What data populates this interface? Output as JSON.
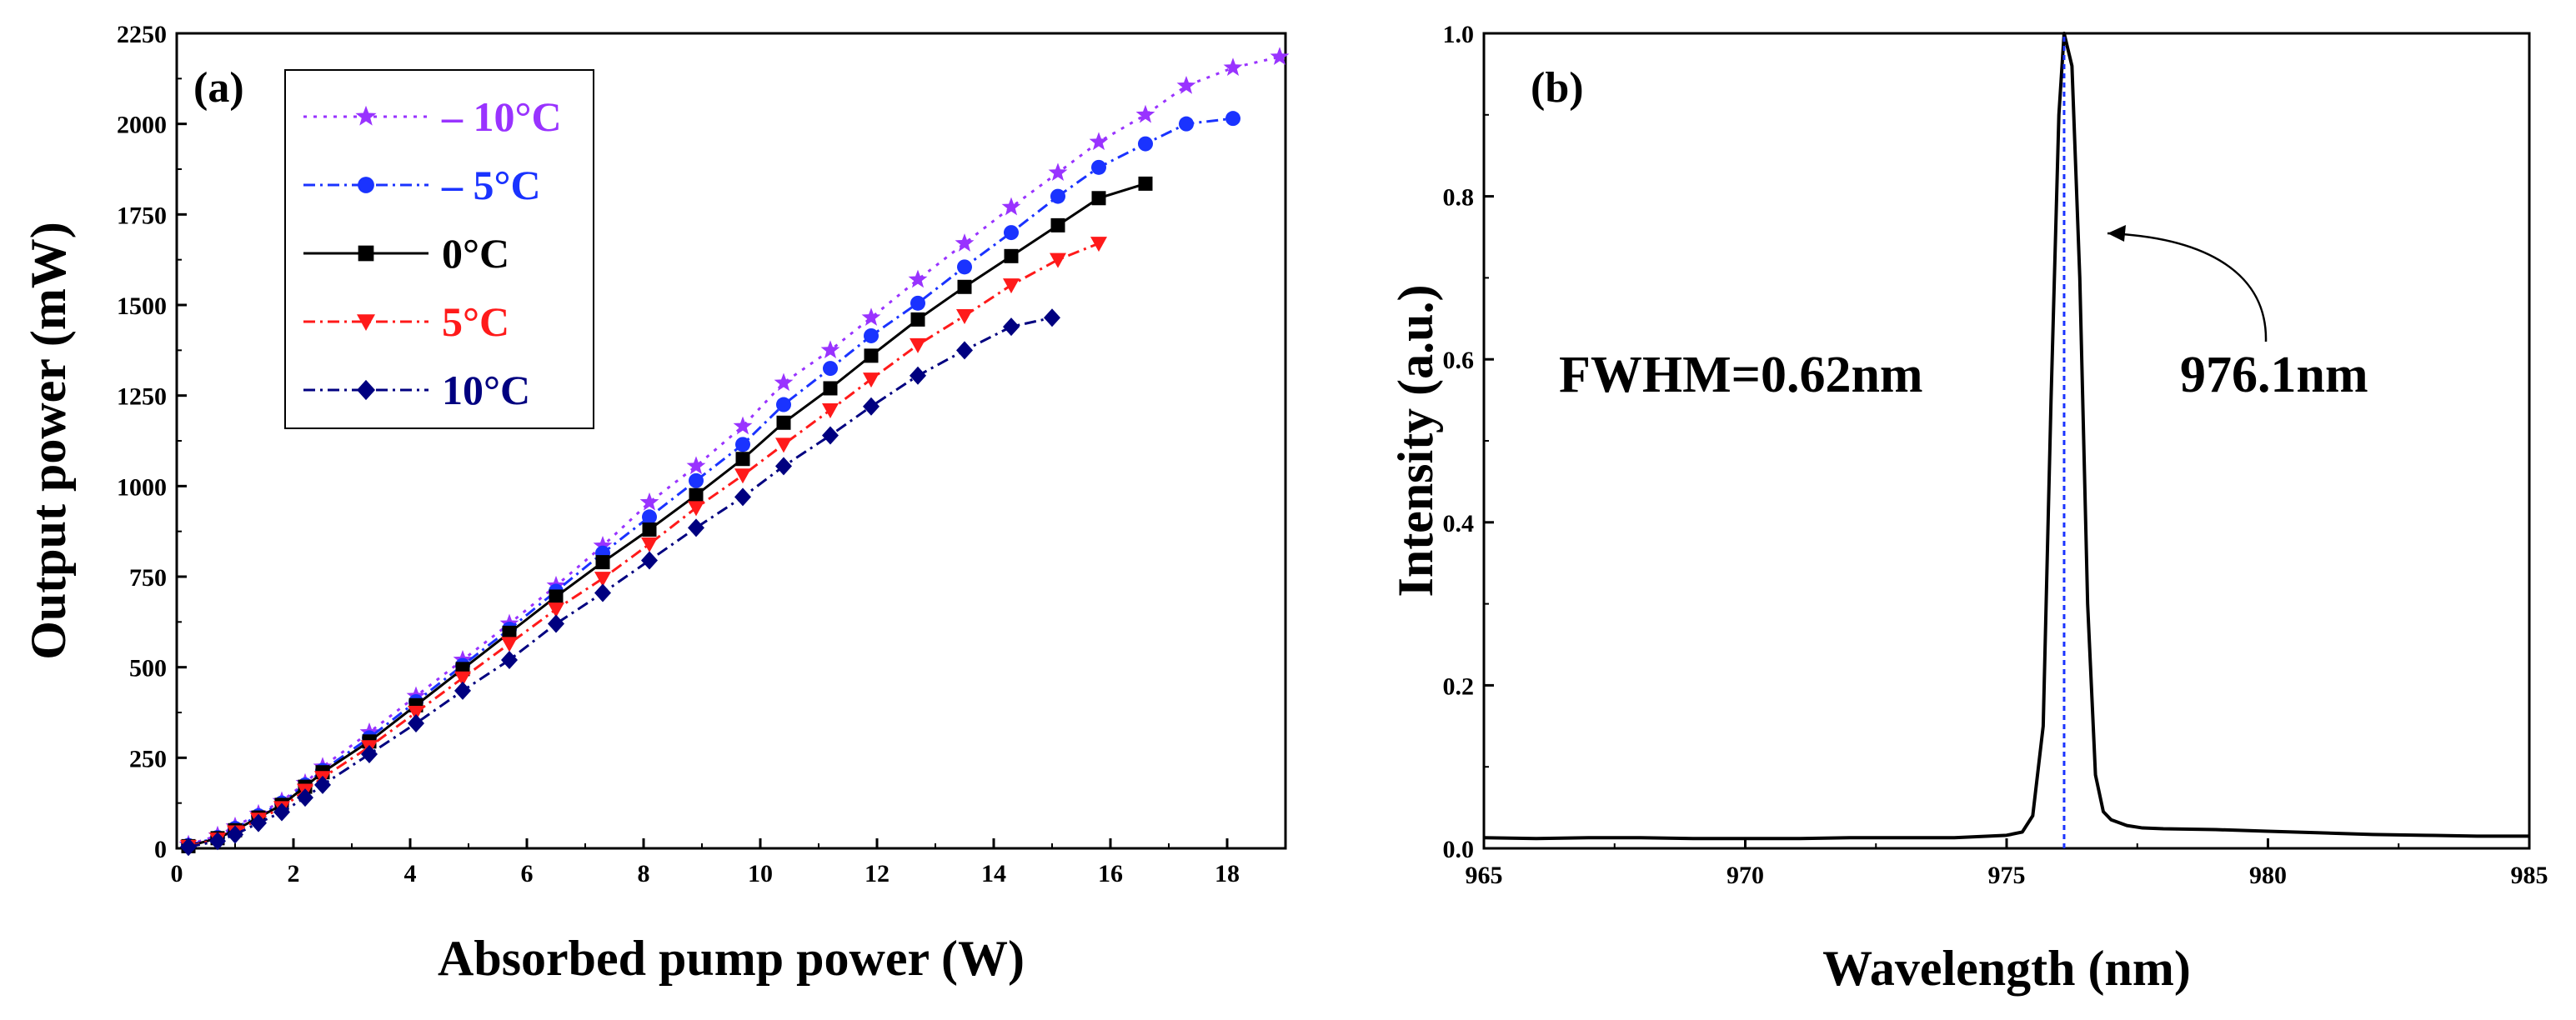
{
  "chart_data": [
    {
      "type": "line",
      "panel_label": "(a)",
      "xlabel": "Absorbed pump power (W)",
      "ylabel": "Output power (mW)",
      "xlim": [
        0,
        19
      ],
      "ylim": [
        0,
        2250
      ],
      "xticks": [
        0,
        2,
        4,
        6,
        8,
        10,
        12,
        14,
        16,
        18
      ],
      "yticks": [
        0,
        250,
        500,
        750,
        1000,
        1250,
        1500,
        1750,
        2000,
        2250
      ],
      "legend_position": "top-left",
      "series": [
        {
          "name": "– 10°C",
          "color": "#9933ff",
          "marker": "star",
          "line_style": "dot",
          "x": [
            0.2,
            0.7,
            1.0,
            1.4,
            1.8,
            2.2,
            2.5,
            3.3,
            4.1,
            4.9,
            5.7,
            6.5,
            7.3,
            8.1,
            8.9,
            9.7,
            10.4,
            11.2,
            11.9,
            12.7,
            13.5,
            14.3,
            15.1,
            15.8,
            16.6,
            17.3,
            18.1,
            18.9
          ],
          "y": [
            10,
            35,
            60,
            95,
            130,
            180,
            225,
            320,
            420,
            520,
            620,
            725,
            835,
            955,
            1055,
            1165,
            1285,
            1375,
            1465,
            1570,
            1670,
            1770,
            1865,
            1950,
            2025,
            2105,
            2155,
            2185
          ]
        },
        {
          "name": "– 5°C",
          "color": "#1a33ff",
          "marker": "circle",
          "line_style": "dash-dot",
          "x": [
            0.2,
            0.7,
            1.0,
            1.4,
            1.8,
            2.2,
            2.5,
            3.3,
            4.1,
            4.9,
            5.7,
            6.5,
            7.3,
            8.1,
            8.9,
            9.7,
            10.4,
            11.2,
            11.9,
            12.7,
            13.5,
            14.3,
            15.1,
            15.8,
            16.6,
            17.3,
            18.1
          ],
          "y": [
            8,
            30,
            55,
            90,
            125,
            175,
            215,
            305,
            405,
            505,
            605,
            710,
            815,
            915,
            1015,
            1115,
            1225,
            1325,
            1415,
            1505,
            1605,
            1700,
            1800,
            1880,
            1945,
            2000,
            2015
          ]
        },
        {
          "name": "0°C",
          "color": "#000000",
          "marker": "square",
          "line_style": "solid",
          "x": [
            0.2,
            0.7,
            1.0,
            1.4,
            1.8,
            2.2,
            2.5,
            3.3,
            4.1,
            4.9,
            5.7,
            6.5,
            7.3,
            8.1,
            8.9,
            9.7,
            10.4,
            11.2,
            11.9,
            12.7,
            13.5,
            14.3,
            15.1,
            15.8,
            16.6
          ],
          "y": [
            6,
            28,
            50,
            85,
            120,
            170,
            210,
            295,
            395,
            495,
            595,
            695,
            790,
            880,
            975,
            1075,
            1175,
            1270,
            1360,
            1460,
            1550,
            1635,
            1720,
            1795,
            1835
          ]
        },
        {
          "name": "5°C",
          "color": "#ff1a1a",
          "marker": "triangle-down",
          "line_style": "dash-dot",
          "x": [
            0.2,
            0.7,
            1.0,
            1.4,
            1.8,
            2.2,
            2.5,
            3.3,
            4.1,
            4.9,
            5.7,
            6.5,
            7.3,
            8.1,
            8.9,
            9.7,
            10.4,
            11.2,
            11.9,
            12.7,
            13.5,
            14.3,
            15.1,
            15.8
          ],
          "y": [
            5,
            25,
            45,
            80,
            112,
            160,
            195,
            280,
            375,
            470,
            565,
            660,
            745,
            840,
            940,
            1030,
            1115,
            1210,
            1295,
            1390,
            1470,
            1555,
            1625,
            1670
          ]
        },
        {
          "name": "10°C",
          "color": "#000080",
          "marker": "diamond",
          "line_style": "dash-dot",
          "x": [
            0.2,
            0.7,
            1.0,
            1.4,
            1.8,
            2.2,
            2.5,
            3.3,
            4.1,
            4.9,
            5.7,
            6.5,
            7.3,
            8.1,
            8.9,
            9.7,
            10.4,
            11.2,
            11.9,
            12.7,
            13.5,
            14.3,
            15.0
          ],
          "y": [
            4,
            20,
            38,
            70,
            100,
            140,
            175,
            260,
            345,
            435,
            520,
            620,
            705,
            795,
            885,
            970,
            1055,
            1140,
            1220,
            1305,
            1375,
            1440,
            1465
          ]
        }
      ]
    },
    {
      "type": "line",
      "panel_label": "(b)",
      "xlabel": "Wavelength (nm)",
      "ylabel": "Intensity (a.u.)",
      "xlim": [
        965,
        985
      ],
      "ylim": [
        0,
        1.0
      ],
      "xticks": [
        965,
        970,
        975,
        980,
        985
      ],
      "yticks": [
        0.0,
        0.2,
        0.4,
        0.6,
        0.8,
        1.0
      ],
      "ytick_labels": [
        "0.0",
        "0.2",
        "0.4",
        "0.6",
        "0.8",
        "1.0"
      ],
      "series": [
        {
          "name": "spectrum",
          "color": "#000000",
          "x": [
            965,
            966,
            967,
            968,
            969,
            970,
            971,
            972,
            973,
            974,
            975,
            975.3,
            975.5,
            975.7,
            975.85,
            976.0,
            976.1,
            976.25,
            976.4,
            976.55,
            976.7,
            976.85,
            977.0,
            977.3,
            977.6,
            978,
            979,
            980,
            981,
            982,
            983,
            984,
            985
          ],
          "y": [
            0.013,
            0.012,
            0.013,
            0.013,
            0.012,
            0.012,
            0.012,
            0.013,
            0.013,
            0.013,
            0.016,
            0.02,
            0.04,
            0.15,
            0.55,
            0.9,
            1.0,
            0.96,
            0.7,
            0.3,
            0.09,
            0.045,
            0.035,
            0.028,
            0.025,
            0.024,
            0.023,
            0.021,
            0.019,
            0.017,
            0.016,
            0.015,
            0.015
          ]
        }
      ],
      "peak_wavelength": 976.1,
      "annotations": {
        "fwhm": "FWHM=0.62nm",
        "peak": "976.1nm"
      }
    }
  ]
}
